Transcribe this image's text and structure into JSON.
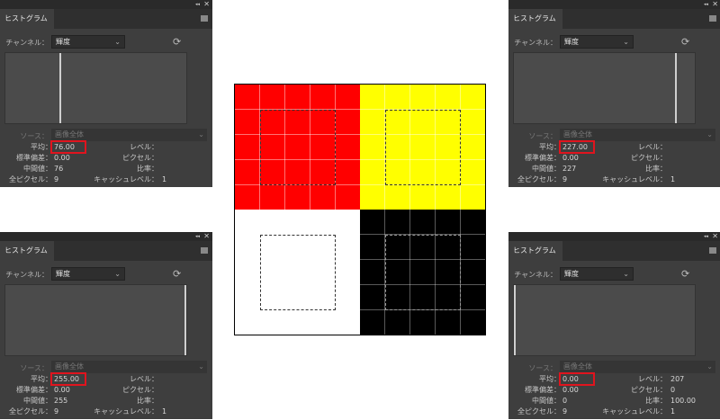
{
  "panels": [
    {
      "id": "top-left",
      "title": "ヒストグラム",
      "channel_label": "チャンネル：",
      "channel": "輝度",
      "source_label": "ソース：",
      "source": "画像全体",
      "labels": {
        "mean": "平均：",
        "std": "標準偏差：",
        "median": "中間値：",
        "pixels": "全ピクセル：",
        "level": "レベル：",
        "count": "ピクセル：",
        "percentile": "比率：",
        "cache": "キャッシュレベル："
      },
      "values": {
        "mean": "76.00",
        "std": "0.00",
        "median": "76",
        "pixels": "9",
        "level": "",
        "count": "",
        "percentile": "",
        "cache": "1"
      },
      "histogram_level": 76
    },
    {
      "id": "top-right",
      "title": "ヒストグラム",
      "channel_label": "チャンネル：",
      "channel": "輝度",
      "source_label": "ソース：",
      "source": "画像全体",
      "labels": {
        "mean": "平均：",
        "std": "標準偏差：",
        "median": "中間値：",
        "pixels": "全ピクセル：",
        "level": "レベル：",
        "count": "ピクセル：",
        "percentile": "比率：",
        "cache": "キャッシュレベル："
      },
      "values": {
        "mean": "227.00",
        "std": "0.00",
        "median": "227",
        "pixels": "9",
        "level": "",
        "count": "",
        "percentile": "",
        "cache": "1"
      },
      "histogram_level": 227
    },
    {
      "id": "bottom-left",
      "title": "ヒストグラム",
      "channel_label": "チャンネル：",
      "channel": "輝度",
      "source_label": "ソース：",
      "source": "画像全体",
      "labels": {
        "mean": "平均：",
        "std": "標準偏差：",
        "median": "中間値：",
        "pixels": "全ピクセル：",
        "level": "レベル：",
        "count": "ピクセル：",
        "percentile": "比率：",
        "cache": "キャッシュレベル："
      },
      "values": {
        "mean": "255.00",
        "std": "0.00",
        "median": "255",
        "pixels": "9",
        "level": "",
        "count": "",
        "percentile": "",
        "cache": "1"
      },
      "histogram_level": 255
    },
    {
      "id": "bottom-right",
      "title": "ヒストグラム",
      "channel_label": "チャンネル：",
      "channel": "輝度",
      "source_label": "ソース：",
      "source": "画像全体",
      "labels": {
        "mean": "平均：",
        "std": "標準偏差：",
        "median": "中間値：",
        "pixels": "全ピクセル：",
        "level": "レベル：",
        "count": "ピクセル：",
        "percentile": "比率：",
        "cache": "キャッシュレベル："
      },
      "values": {
        "mean": "0.00",
        "std": "0.00",
        "median": "0",
        "pixels": "9",
        "level": "207",
        "count": "0",
        "percentile": "100.00",
        "cache": "1"
      },
      "histogram_level": 0
    }
  ],
  "icons": {
    "collapse": "double-chevron-icon",
    "close": "close-icon",
    "menu": "panel-menu-icon",
    "refresh": "refresh-icon",
    "dropdown": "chevron-down-icon"
  },
  "canvas": {
    "quadrants": [
      {
        "name": "red",
        "color": "#ff0000",
        "grid": true
      },
      {
        "name": "yellow",
        "color": "#ffff00",
        "grid": true
      },
      {
        "name": "white",
        "color": "#ffffff",
        "grid": false
      },
      {
        "name": "black",
        "color": "#000000",
        "grid": true
      }
    ]
  },
  "highlight_color": "#e0141e"
}
